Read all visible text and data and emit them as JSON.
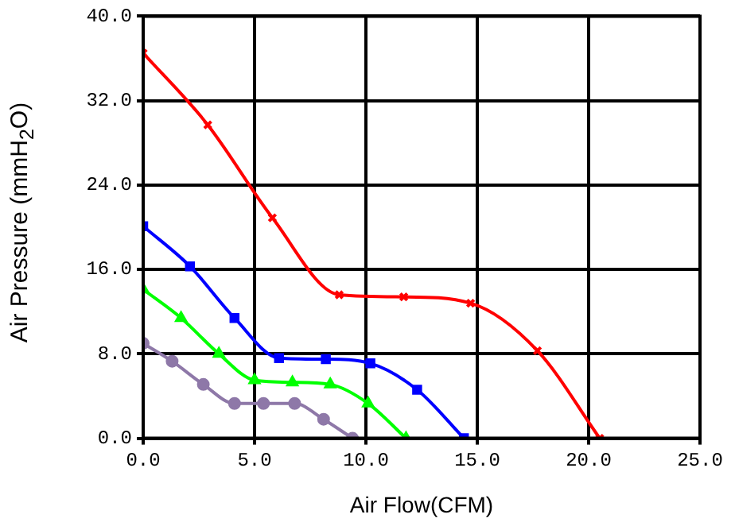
{
  "chart_data": {
    "type": "line",
    "xlabel": "Air Flow(CFM)",
    "ylabel": "Air Pressure (mmH$_{2}$O)",
    "xlim": [
      0,
      25
    ],
    "xticks": [
      {
        "value": 0,
        "label": "0.0"
      },
      {
        "value": 5,
        "label": "5.0"
      },
      {
        "value": 10,
        "label": "10.0"
      },
      {
        "value": 15,
        "label": "15.0"
      },
      {
        "value": 20,
        "label": "20.0"
      },
      {
        "value": 25,
        "label": "25.0"
      }
    ],
    "ylim": [
      0,
      40
    ],
    "yticks": [
      {
        "value": 0,
        "label": "0.0"
      },
      {
        "value": 8,
        "label": "8.0"
      },
      {
        "value": 16,
        "label": "16.0"
      },
      {
        "value": 24,
        "label": "24.0"
      },
      {
        "value": 32,
        "label": "32.0"
      },
      {
        "value": 40,
        "label": "40.0"
      }
    ],
    "grid": true,
    "legend": false,
    "series": [
      {
        "color": "#ff0000",
        "marker": "cross",
        "x": [
          0,
          2.9,
          5.8,
          8.8,
          11.7,
          14.7,
          17.7,
          20.5
        ],
        "values": [
          36.5,
          29.7,
          20.9,
          13.6,
          13.4,
          12.8,
          8.3,
          0
        ]
      },
      {
        "color": "#0000ff",
        "marker": "square",
        "x": [
          0,
          2.1,
          4.1,
          6.1,
          8.2,
          10.2,
          12.3,
          14.4
        ],
        "values": [
          20.1,
          16.3,
          11.4,
          7.6,
          7.5,
          7.1,
          4.6,
          0
        ]
      },
      {
        "color": "#00ff00",
        "marker": "triangle",
        "x": [
          0,
          1.7,
          3.4,
          5.0,
          6.7,
          8.4,
          10.1,
          11.8
        ],
        "values": [
          14.1,
          11.4,
          8.0,
          5.5,
          5.3,
          5.1,
          3.3,
          0
        ]
      },
      {
        "color": "#8e78a8",
        "marker": "circle",
        "x": [
          0,
          1.3,
          2.7,
          4.1,
          5.4,
          6.8,
          8.1,
          9.4
        ],
        "values": [
          9.0,
          7.3,
          5.1,
          3.3,
          3.3,
          3.3,
          1.8,
          0
        ]
      }
    ]
  }
}
